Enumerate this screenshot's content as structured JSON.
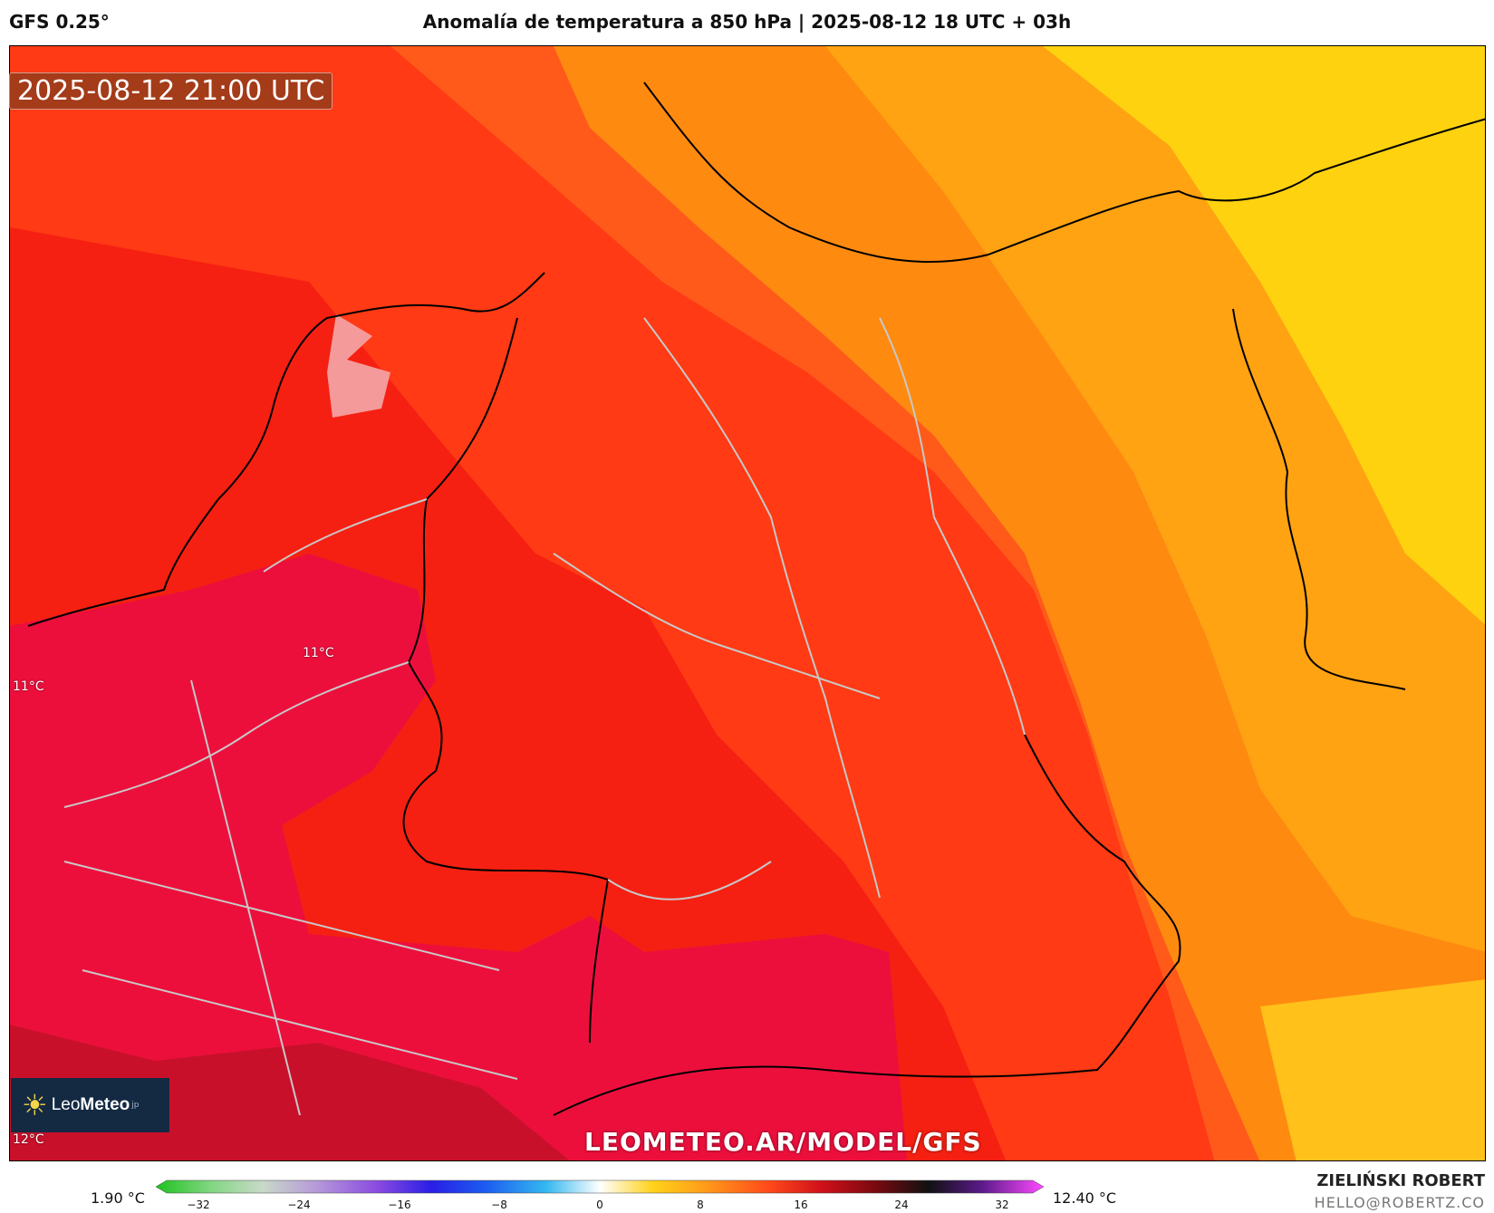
{
  "header": {
    "model": "GFS 0.25°",
    "title": "Anomalía de temperatura a 850 hPa | 2025-08-12 18 UTC + 03h"
  },
  "map": {
    "valid_time": "2025-08-12 21:00 UTC",
    "watermark": "LEOMETEO.AR/MODEL/GFS",
    "point_labels": [
      "11°C",
      "11°C",
      "12°C"
    ],
    "logo": {
      "part1": "Leo",
      "part2": "Meteo",
      "suffix": "jp"
    }
  },
  "colorbar": {
    "min_label": "1.90 °C",
    "max_label": "12.40 °C",
    "ticks": [
      "−32",
      "−24",
      "−16",
      "−8",
      "0",
      "8",
      "16",
      "24",
      "32"
    ],
    "colors": [
      "#1fc21f",
      "#7fd67f",
      "#c8d9c8",
      "#b69ad9",
      "#8a4ae0",
      "#2a1ee6",
      "#1b5bf0",
      "#35b8f0",
      "#ffffff",
      "#ffd21a",
      "#ff9a1a",
      "#ff4a1a",
      "#d0101a",
      "#7a0a10",
      "#111111",
      "#5a1a8a",
      "#c01ad0",
      "#ff4aff"
    ]
  },
  "credits": {
    "author": "ZIELIŃSKI ROBERT",
    "email": "HELLO@ROBERTZ.CO"
  }
}
